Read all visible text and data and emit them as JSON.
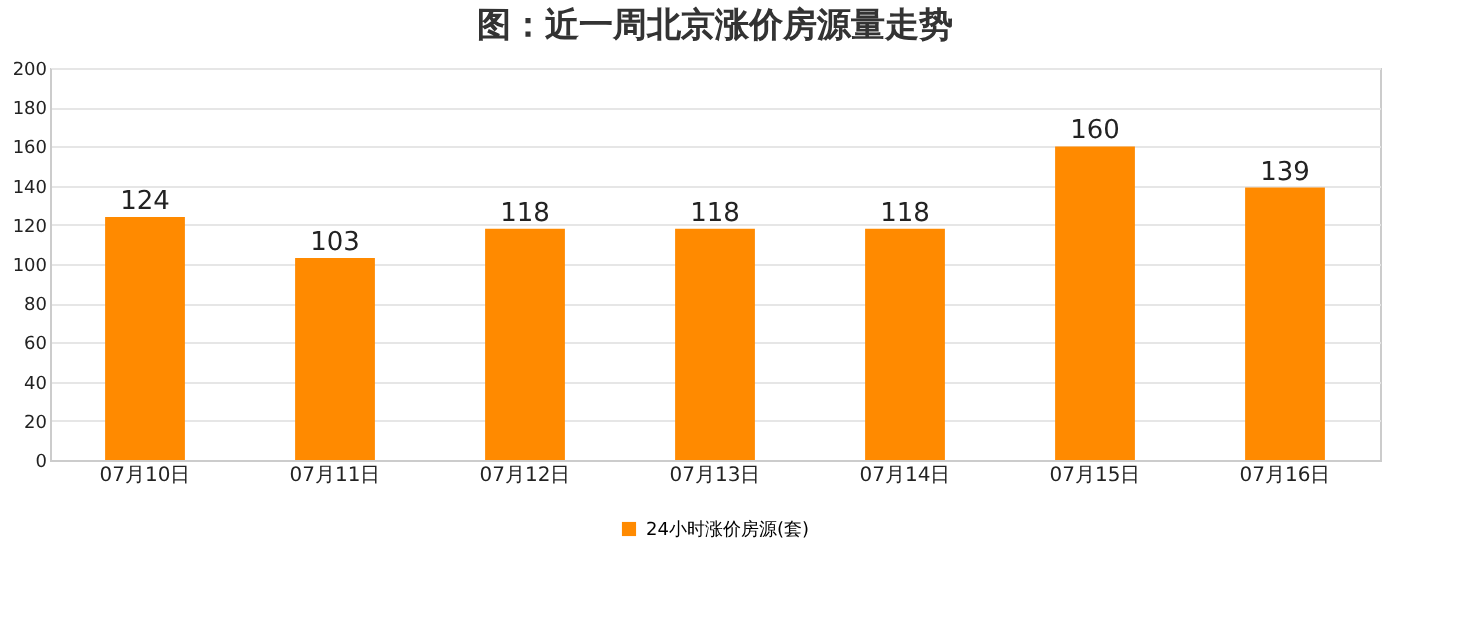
{
  "chart_data": {
    "type": "bar",
    "title": "图：近一周北京涨价房源量走势",
    "categories": [
      "07月10日",
      "07月11日",
      "07月12日",
      "07月13日",
      "07月14日",
      "07月15日",
      "07月16日"
    ],
    "series": [
      {
        "name": "24小时涨价房源(套)",
        "color": "#ff8a00",
        "values": [
          124,
          103,
          118,
          118,
          118,
          160,
          139
        ]
      }
    ],
    "ylim": [
      0,
      200
    ],
    "yticks": [
      0,
      20,
      40,
      60,
      80,
      100,
      120,
      140,
      160,
      180,
      200
    ],
    "grid": "y",
    "legend": "bottom",
    "data_labels": true
  }
}
